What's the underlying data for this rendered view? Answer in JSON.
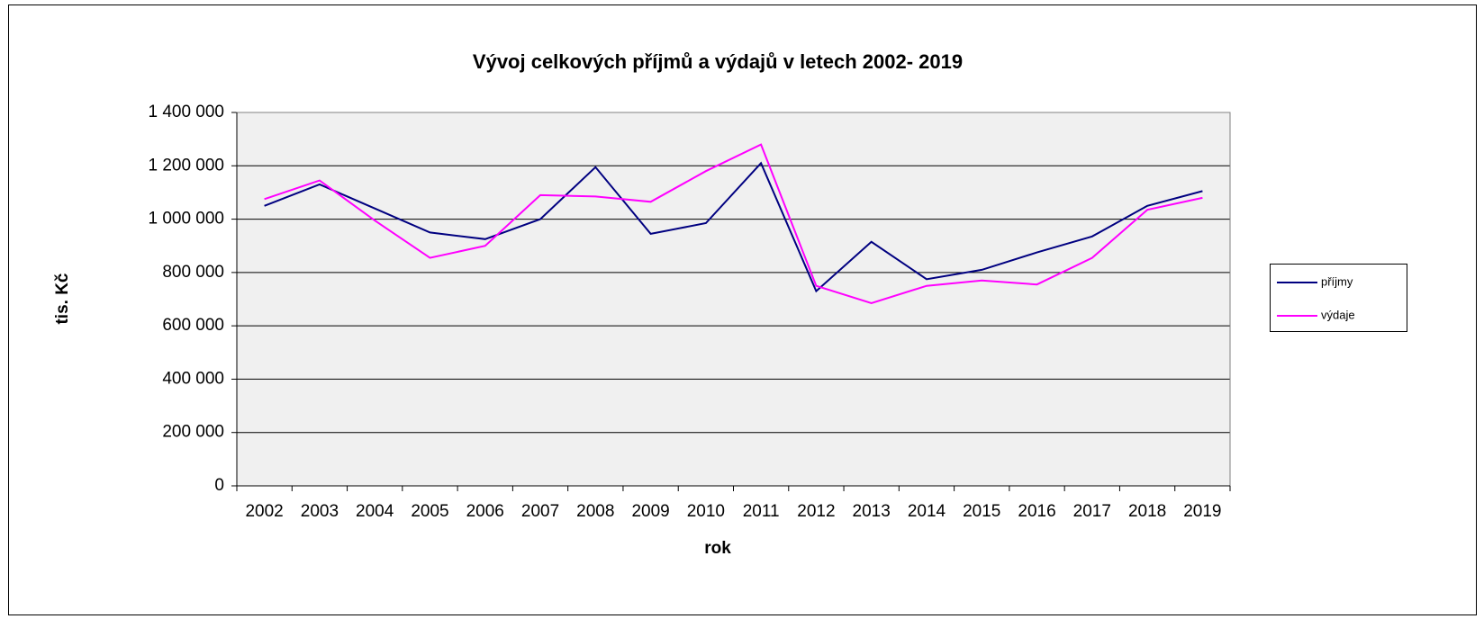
{
  "chart_data": {
    "type": "line",
    "title": "Vývoj celkových příjmů a výdajů v letech 2002- 2019",
    "x_label": "rok",
    "y_label": "tis. Kč",
    "categories": [
      "2002",
      "2003",
      "2004",
      "2005",
      "2006",
      "2007",
      "2008",
      "2009",
      "2010",
      "2011",
      "2012",
      "2013",
      "2014",
      "2015",
      "2016",
      "2017",
      "2018",
      "2019"
    ],
    "series": [
      {
        "name": "příjmy",
        "color": "#000080",
        "values": [
          1050000,
          1130000,
          1040000,
          950000,
          925000,
          1000000,
          1195000,
          945000,
          985000,
          1210000,
          730000,
          915000,
          775000,
          810000,
          875000,
          935000,
          1050000,
          1105000
        ]
      },
      {
        "name": "výdaje",
        "color": "#ff00ff",
        "values": [
          1075000,
          1145000,
          995000,
          855000,
          900000,
          1090000,
          1085000,
          1065000,
          1180000,
          1280000,
          750000,
          685000,
          750000,
          770000,
          755000,
          855000,
          1035000,
          1080000
        ]
      }
    ],
    "ylim": [
      0,
      1400000
    ],
    "yticks": [
      0,
      {
        "value": 200000,
        "label": "200 000"
      },
      {
        "value": 400000,
        "label": "400 000"
      },
      {
        "value": 600000,
        "label": "600 000"
      },
      {
        "value": 800000,
        "label": "800 000"
      },
      {
        "value": 1000000,
        "label": "1 000 000"
      },
      {
        "value": 1200000,
        "label": "1 200 000"
      },
      {
        "value": 1400000,
        "label": "1 400 000"
      }
    ],
    "grid": true,
    "legend": "right"
  }
}
